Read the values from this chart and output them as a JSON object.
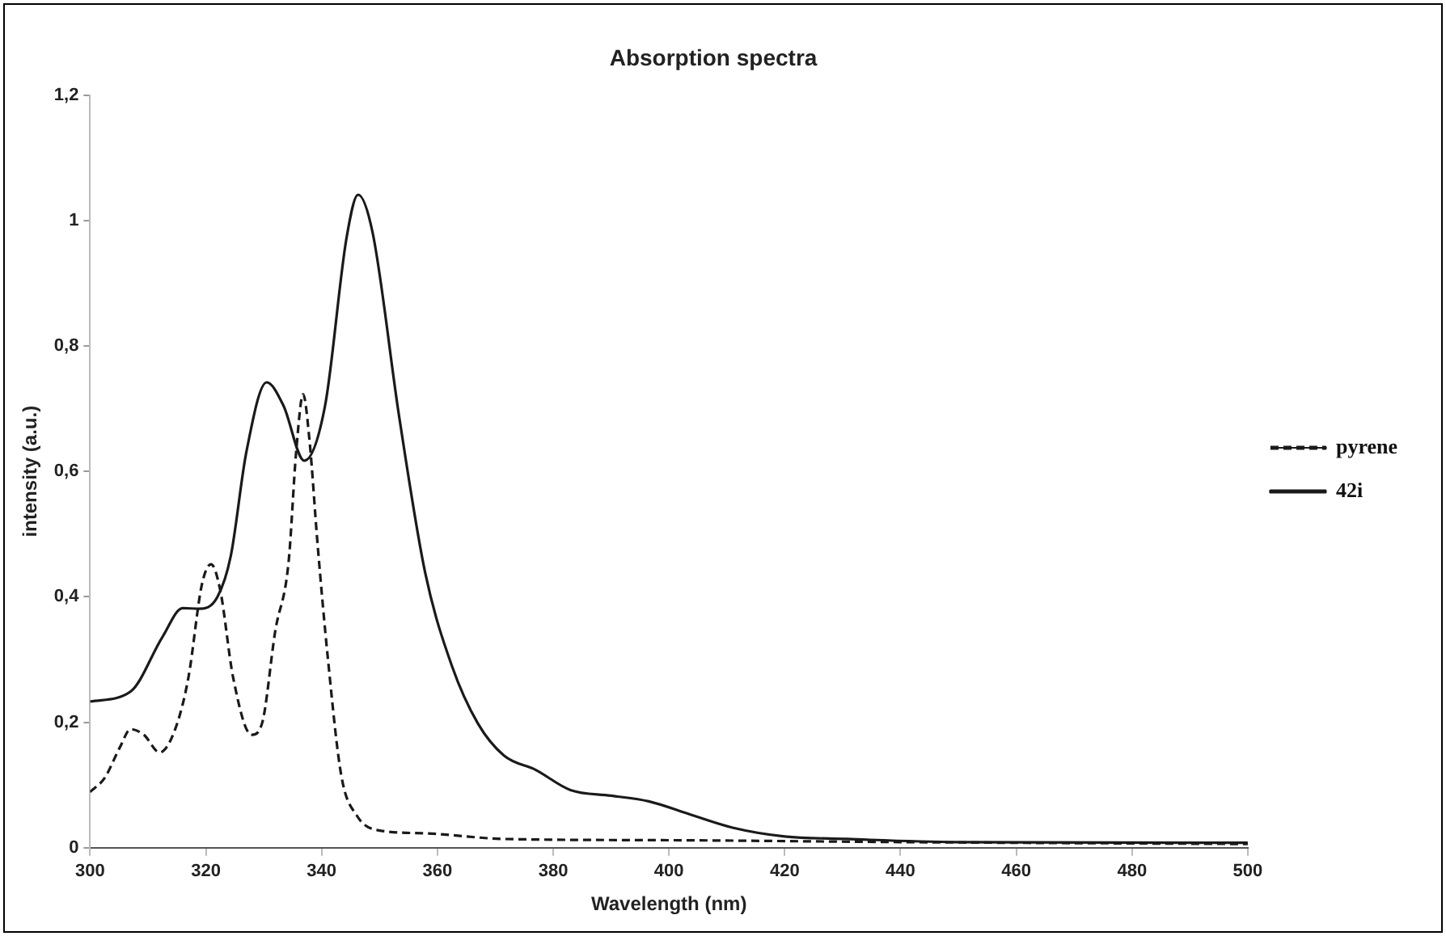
{
  "chart_data": {
    "type": "line",
    "title": "Absorption spectra",
    "xlabel": "Wavelength (nm)",
    "ylabel": "intensity (a.u.)",
    "xlim": [
      300,
      500
    ],
    "xticks": [
      300,
      320,
      340,
      360,
      380,
      400,
      420,
      440,
      460,
      480,
      500
    ],
    "ylim": [
      0,
      1.2
    ],
    "yticks": [
      0,
      {
        "value": 0.2,
        "label": "0,2"
      },
      {
        "value": 0.4,
        "label": "0,4"
      },
      {
        "value": 0.6,
        "label": "0,6"
      },
      {
        "value": 0.8,
        "label": "0,8"
      },
      1,
      {
        "value": 1.2,
        "label": "1,2"
      }
    ],
    "grid": false,
    "legend": "right",
    "marker": "none",
    "series": [
      {
        "name": "pyrene",
        "color": "#1a1a1a",
        "line_style": "dashed",
        "x": [
          300,
          302.5,
          305.2,
          307,
          309.3,
          312,
          314.7,
          317,
          319.3,
          320.9,
          322.5,
          324.7,
          327.9,
          329.7,
          332,
          334.3,
          335.6,
          336.8,
          337.9,
          339.3,
          341.1,
          343.4,
          346.1,
          349.7,
          357.9,
          371.5,
          400,
          440,
          500
        ],
        "values": [
          0.089,
          0.111,
          0.161,
          0.189,
          0.18,
          0.152,
          0.189,
          0.272,
          0.419,
          0.452,
          0.41,
          0.272,
          0.18,
          0.198,
          0.346,
          0.456,
          0.631,
          0.723,
          0.65,
          0.484,
          0.3,
          0.115,
          0.051,
          0.028,
          0.023,
          0.014,
          0.012,
          0.009,
          0.006
        ]
      },
      {
        "name": "42i",
        "color": "#1a1a1a",
        "line_style": "solid",
        "x": [
          300,
          307,
          312.5,
          316,
          318.8,
          322,
          324.3,
          327,
          330.5,
          333.4,
          337,
          340.6,
          344.3,
          346.3,
          348.8,
          353.4,
          357.9,
          362.5,
          367,
          371.5,
          377,
          383,
          390,
          396.5,
          403.7,
          411,
          420,
          430.7,
          449.6,
          500
        ],
        "values": [
          0.233,
          0.249,
          0.336,
          0.382,
          0.381,
          0.4,
          0.465,
          0.631,
          0.742,
          0.705,
          0.617,
          0.705,
          0.972,
          1.041,
          0.981,
          0.687,
          0.438,
          0.29,
          0.198,
          0.147,
          0.124,
          0.092,
          0.083,
          0.074,
          0.053,
          0.032,
          0.018,
          0.014,
          0.009,
          0.008
        ]
      }
    ]
  }
}
